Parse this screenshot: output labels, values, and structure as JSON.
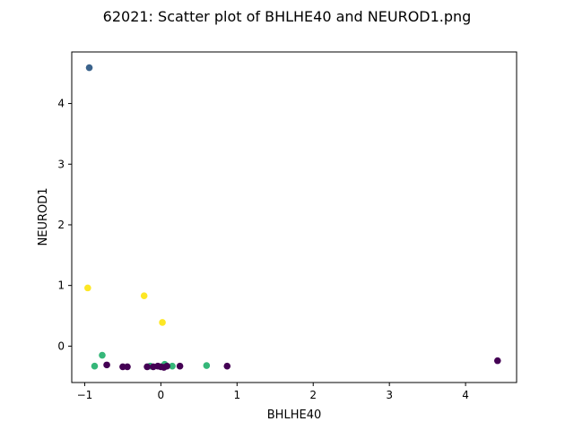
{
  "chart_data": {
    "type": "scatter",
    "title": "62021: Scatter plot of BHLHE40 and NEUROD1.png",
    "xlabel": "BHLHE40",
    "ylabel": "NEUROD1",
    "xlim": [
      -1.17,
      4.67
    ],
    "ylim": [
      -0.6,
      4.85
    ],
    "xticks": [
      -1,
      0,
      1,
      2,
      3,
      4
    ],
    "yticks": [
      0,
      1,
      2,
      3,
      4
    ],
    "grid": false,
    "colors": {
      "purple": "#440154",
      "blue": "#3b638c",
      "green": "#35b779",
      "yellow": "#fde725"
    },
    "points": [
      {
        "x": -0.94,
        "y": 4.59,
        "color": "blue"
      },
      {
        "x": -0.96,
        "y": 0.96,
        "color": "yellow"
      },
      {
        "x": -0.22,
        "y": 0.83,
        "color": "yellow"
      },
      {
        "x": 0.02,
        "y": 0.39,
        "color": "yellow"
      },
      {
        "x": -0.77,
        "y": -0.15,
        "color": "green"
      },
      {
        "x": -0.87,
        "y": -0.33,
        "color": "green"
      },
      {
        "x": 0.6,
        "y": -0.32,
        "color": "green"
      },
      {
        "x": 0.15,
        "y": -0.33,
        "color": "green"
      },
      {
        "x": 0.05,
        "y": -0.3,
        "color": "green"
      },
      {
        "x": -0.14,
        "y": -0.33,
        "color": "green"
      },
      {
        "x": -0.71,
        "y": -0.31,
        "color": "purple"
      },
      {
        "x": -0.5,
        "y": -0.34,
        "color": "purple"
      },
      {
        "x": -0.44,
        "y": -0.34,
        "color": "purple"
      },
      {
        "x": -0.18,
        "y": -0.34,
        "color": "purple"
      },
      {
        "x": -0.1,
        "y": -0.34,
        "color": "purple"
      },
      {
        "x": -0.04,
        "y": -0.33,
        "color": "purple"
      },
      {
        "x": 0.0,
        "y": -0.34,
        "color": "purple"
      },
      {
        "x": 0.04,
        "y": -0.35,
        "color": "purple"
      },
      {
        "x": 0.08,
        "y": -0.33,
        "color": "purple"
      },
      {
        "x": 0.25,
        "y": -0.33,
        "color": "purple"
      },
      {
        "x": 0.87,
        "y": -0.33,
        "color": "purple"
      },
      {
        "x": 4.42,
        "y": -0.24,
        "color": "purple"
      }
    ]
  }
}
